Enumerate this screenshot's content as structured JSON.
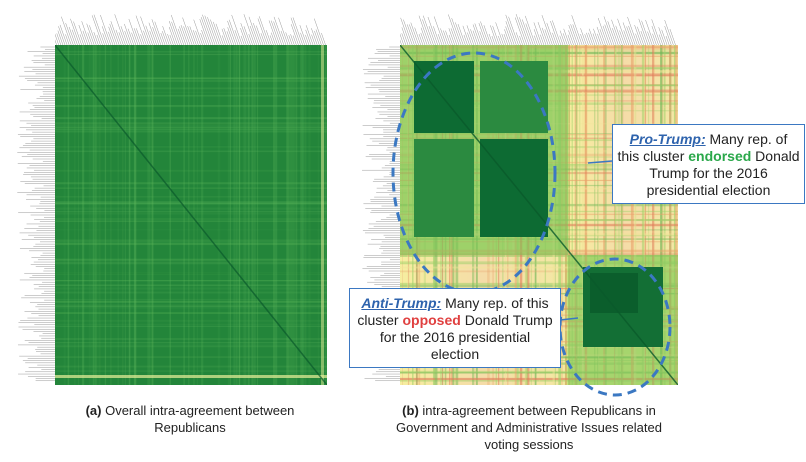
{
  "panels": {
    "a": {
      "caption_prefix": "(a)",
      "caption_text": "Overall intra-agreement between Republicans"
    },
    "b": {
      "caption_prefix": "(b)",
      "caption_text": "intra-agreement between Republicans in Government and Administrative Issues related voting sessions"
    }
  },
  "callouts": {
    "pro": {
      "tag": "Pro-Trump:",
      "text_before": "Many rep. of this cluster",
      "keyword": "endorsed",
      "text_after": "Donald Trump for the 2016 presidential election"
    },
    "anti": {
      "tag": "Anti-Trump:",
      "text_before": "Many rep. of this cluster",
      "keyword": "opposed",
      "text_after": "Donald Trump for the 2016 presidential election"
    }
  },
  "colors": {
    "dark_green": "#0b6b34",
    "mid_green": "#2e8b3e",
    "light_green": "#b7dc72",
    "yellow": "#f4ef9e",
    "peach": "#f7d8a6",
    "ellipse": "#3b78c2",
    "endorsed": "#2aa84a",
    "opposed": "#e04040"
  }
}
